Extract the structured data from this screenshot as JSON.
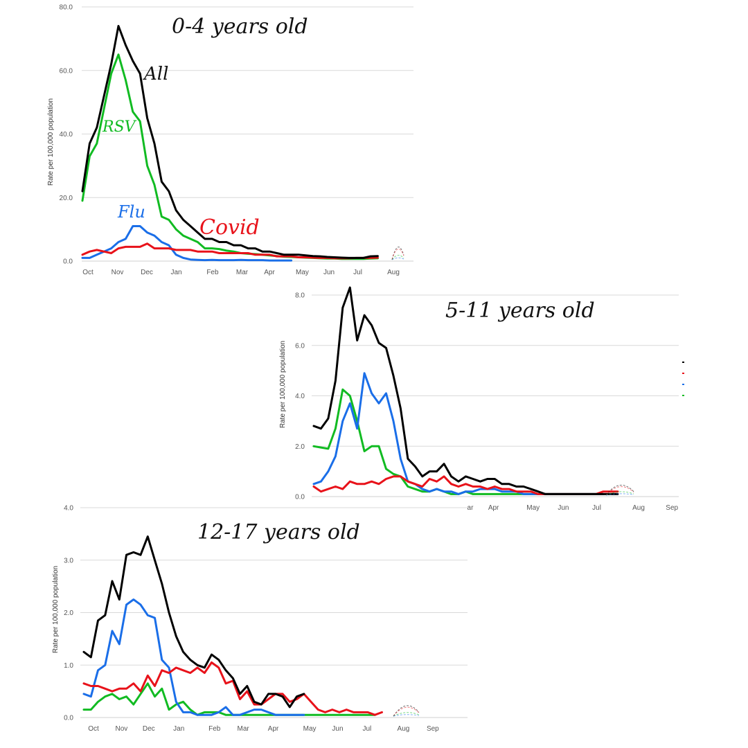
{
  "colors": {
    "All": "#000000",
    "Covid": "#e8121a",
    "Flu": "#1a6ee8",
    "RSV": "#11bb22",
    "grid": "#d9d9d9",
    "axis": "#cfcfcf"
  },
  "chart_data": [
    {
      "type": "line",
      "title": "0-4 years old",
      "ylabel": "Rate per 100,000 population",
      "ylim": [
        0,
        80
      ],
      "yticks": [
        "0.0",
        "20.0",
        "40.0",
        "60.0",
        "80.0"
      ],
      "xticks": [
        "Oct",
        "Nov",
        "Dec",
        "Jan",
        "Feb",
        "Mar",
        "Apr",
        "May",
        "Jun",
        "Jul",
        "Aug"
      ],
      "x_week_index_of_ticks": [
        0,
        4.3,
        8.6,
        12.9,
        18.2,
        22.5,
        26.5,
        31.3,
        35.2,
        39.4,
        44.6
      ],
      "annotations": {
        "All": "All",
        "RSV": "RSV",
        "Flu": "Flu",
        "Covid": "Covid"
      },
      "series": [
        {
          "name": "All",
          "values": [
            22,
            37,
            42,
            52,
            62,
            74,
            68,
            63,
            59,
            45,
            37,
            25,
            22,
            16,
            13,
            11,
            9,
            7,
            7,
            6,
            6,
            5,
            5,
            4,
            4,
            3,
            3,
            2.5,
            2,
            2,
            2,
            1.8,
            1.6,
            1.5,
            1.3,
            1.2,
            1.1,
            1.0,
            1.0,
            1.0,
            1.5,
            1.6
          ]
        },
        {
          "name": "RSV",
          "values": [
            19,
            33,
            37,
            48,
            59,
            65,
            57,
            47,
            44,
            30,
            24,
            14,
            13,
            10,
            8,
            7,
            6,
            4,
            4,
            3.8,
            3.3,
            3,
            2.5,
            2.3,
            2.2,
            2,
            1.8,
            1.6,
            1.4,
            1.3,
            1.2,
            1.1,
            1.0,
            0.9,
            0.8,
            0.8,
            0.7,
            0.7,
            0.7,
            0.7,
            0.8,
            0.9
          ]
        },
        {
          "name": "Flu",
          "values": [
            1,
            1,
            2,
            3,
            4,
            6,
            7,
            11,
            11,
            9,
            8,
            6,
            5,
            2,
            1,
            0.5,
            0.4,
            0.3,
            0.4,
            0.3,
            0.3,
            0.3,
            0.4,
            0.3,
            0.3,
            0.3,
            0.2,
            0.2,
            0.2,
            0.2
          ]
        },
        {
          "name": "Covid",
          "values": [
            2,
            3,
            3.5,
            3,
            2.5,
            4,
            4.5,
            4.5,
            4.5,
            5.5,
            4,
            4,
            4,
            3.5,
            3.5,
            3.5,
            3,
            3,
            3,
            2.5,
            2.5,
            2.5,
            2.5,
            2.5,
            2,
            2,
            2,
            1.5,
            1.5,
            1.5,
            1.2,
            1.2,
            1.1,
            1.0,
            1.0,
            0.9,
            0.9,
            0.9,
            1.0,
            1.0,
            1.0,
            1.1
          ]
        }
      ]
    },
    {
      "type": "line",
      "title": "5-11 years old",
      "ylabel": "Rate per 100,000 population",
      "ylim": [
        0,
        8
      ],
      "yticks": [
        "0.0",
        "2.0",
        "4.0",
        "6.0",
        "8.0"
      ],
      "xticks": [
        "ar",
        "Apr",
        "May",
        "Jun",
        "Jul",
        "Aug",
        "Sep"
      ],
      "x_week_index_of_ticks": [
        23.0,
        26.0,
        31.1,
        35.0,
        39.3,
        44.7,
        49.0
      ],
      "series": [
        {
          "name": "All",
          "values": [
            2.8,
            2.7,
            3.1,
            4.6,
            7.5,
            8.3,
            6.2,
            7.2,
            6.8,
            6.1,
            5.9,
            4.8,
            3.5,
            1.5,
            1.2,
            0.8,
            1.0,
            1.0,
            1.3,
            0.8,
            0.6,
            0.8,
            0.7,
            0.6,
            0.7,
            0.7,
            0.5,
            0.5,
            0.4,
            0.4,
            0.3,
            0.2,
            0.1,
            0.1,
            0.1,
            0.1,
            0.1,
            0.1,
            0.1,
            0.1,
            0.1,
            0.1,
            0.1
          ]
        },
        {
          "name": "Flu",
          "values": [
            0.5,
            0.6,
            1.0,
            1.6,
            3.0,
            3.7,
            2.7,
            4.9,
            4.1,
            3.7,
            4.1,
            3.0,
            1.5,
            0.6,
            0.5,
            0.3,
            0.2,
            0.3,
            0.2,
            0.2,
            0.1,
            0.2,
            0.2,
            0.3,
            0.3,
            0.3,
            0.2,
            0.2,
            0.2,
            0.1,
            0.1,
            0.1,
            0.1,
            0.1,
            0.1,
            0.1,
            0.1,
            0.1,
            0.1,
            0.1,
            0.1
          ]
        },
        {
          "name": "RSV",
          "values": [
            2.0,
            1.95,
            1.9,
            2.7,
            4.25,
            4.0,
            3.0,
            1.8,
            2.0,
            2.0,
            1.1,
            0.9,
            0.8,
            0.4,
            0.3,
            0.2,
            0.2,
            0.3,
            0.2,
            0.1,
            0.1,
            0.2,
            0.1,
            0.1,
            0.1,
            0.1,
            0.1,
            0.1,
            0.1,
            0.1,
            0.1,
            0.1,
            0.1,
            0.1,
            0.1,
            0.1,
            0.1,
            0.1,
            0.1,
            0.1,
            0.1
          ]
        },
        {
          "name": "Covid",
          "values": [
            0.4,
            0.2,
            0.3,
            0.4,
            0.3,
            0.6,
            0.5,
            0.5,
            0.6,
            0.5,
            0.7,
            0.8,
            0.8,
            0.6,
            0.5,
            0.4,
            0.7,
            0.6,
            0.8,
            0.5,
            0.4,
            0.5,
            0.4,
            0.4,
            0.3,
            0.4,
            0.3,
            0.3,
            0.2,
            0.2,
            0.2,
            0.1,
            0.1,
            0.1,
            0.1,
            0.1,
            0.1,
            0.1,
            0.1,
            0.1,
            0.2,
            0.2,
            0.2
          ]
        }
      ]
    },
    {
      "type": "line",
      "title": "12-17 years old",
      "ylabel": "Rate per 100,000 population",
      "ylim": [
        0,
        4
      ],
      "yticks": [
        "0.0",
        "1.0",
        "2.0",
        "3.0",
        "4.0"
      ],
      "xticks": [
        "Oct",
        "Nov",
        "Dec",
        "Jan",
        "Feb",
        "Mar",
        "Apr",
        "May",
        "Jun",
        "Jul",
        "Aug",
        "Sep"
      ],
      "x_week_index_of_ticks": [
        0.9,
        4.9,
        8.8,
        13.1,
        18.2,
        22.3,
        26.6,
        31.8,
        35.8,
        40.0,
        45.2,
        49.4
      ],
      "series": [
        {
          "name": "All",
          "values": [
            1.25,
            1.15,
            1.85,
            1.95,
            2.6,
            2.25,
            3.1,
            3.15,
            3.1,
            3.45,
            3.0,
            2.55,
            2.0,
            1.55,
            1.25,
            1.1,
            1.0,
            0.95,
            1.2,
            1.1,
            0.9,
            0.75,
            0.45,
            0.6,
            0.3,
            0.25,
            0.45,
            0.45,
            0.4,
            0.2,
            0.4,
            0.45
          ]
        },
        {
          "name": "Flu",
          "values": [
            0.45,
            0.4,
            0.9,
            1.0,
            1.65,
            1.4,
            2.15,
            2.25,
            2.15,
            1.95,
            1.9,
            1.1,
            0.95,
            0.3,
            0.1,
            0.1,
            0.05,
            0.05,
            0.05,
            0.1,
            0.2,
            0.05,
            0.05,
            0.1,
            0.15,
            0.15,
            0.1,
            0.05,
            0.05,
            0.05,
            0.05,
            0.05
          ]
        },
        {
          "name": "Covid",
          "values": [
            0.65,
            0.6,
            0.6,
            0.55,
            0.5,
            0.55,
            0.55,
            0.65,
            0.5,
            0.8,
            0.6,
            0.9,
            0.85,
            0.95,
            0.9,
            0.85,
            0.95,
            0.85,
            1.05,
            0.95,
            0.65,
            0.7,
            0.35,
            0.5,
            0.25,
            0.25,
            0.35,
            0.45,
            0.45,
            0.3,
            0.35,
            0.45,
            0.3,
            0.15,
            0.1,
            0.15,
            0.1,
            0.15,
            0.1,
            0.1,
            0.1,
            0.05,
            0.1
          ]
        },
        {
          "name": "RSV",
          "values": [
            0.15,
            0.15,
            0.3,
            0.4,
            0.45,
            0.35,
            0.4,
            0.25,
            0.45,
            0.65,
            0.4,
            0.55,
            0.15,
            0.25,
            0.3,
            0.15,
            0.05,
            0.1,
            0.1,
            0.1,
            0.05,
            0.05,
            0.05,
            0.05,
            0.05,
            0.05,
            0.05,
            0.05,
            0.05,
            0.05,
            0.05,
            0.05,
            0.05,
            0.05,
            0.05,
            0.05,
            0.05,
            0.05,
            0.05,
            0.05,
            0.05,
            0.05
          ]
        }
      ]
    }
  ]
}
